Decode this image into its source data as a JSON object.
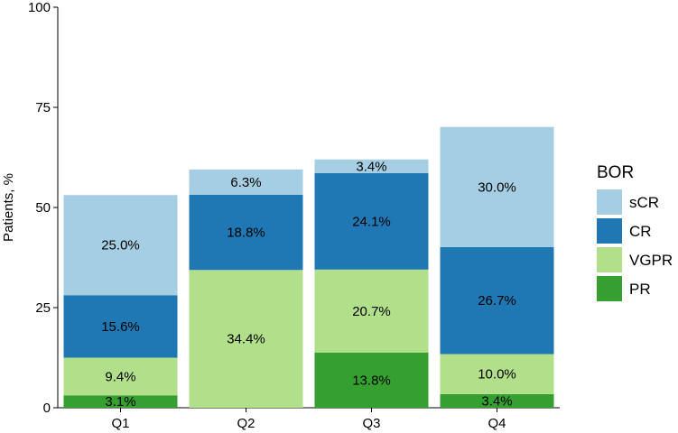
{
  "chart_data": {
    "type": "bar",
    "stacked": true,
    "categories": [
      "Q1",
      "Q2",
      "Q3",
      "Q4"
    ],
    "ylabel": "Patients, %",
    "xlabel": "",
    "ylim": [
      0,
      100
    ],
    "yticks": [
      "0",
      "25",
      "50",
      "75",
      "100"
    ],
    "grid": false,
    "legend_title": "BOR",
    "legend_position": "right",
    "series": [
      {
        "name": "PR",
        "color": "#35a030",
        "values": [
          3.1,
          0,
          13.8,
          3.4
        ],
        "labels": [
          "3.1%",
          "",
          "13.8%",
          "3.4%"
        ]
      },
      {
        "name": "VGPR",
        "color": "#b2df8a",
        "values": [
          9.4,
          34.4,
          20.7,
          10.0
        ],
        "labels": [
          "9.4%",
          "34.4%",
          "20.7%",
          "10.0%"
        ]
      },
      {
        "name": "CR",
        "color": "#1f78b4",
        "values": [
          15.6,
          18.8,
          24.1,
          26.7
        ],
        "labels": [
          "15.6%",
          "18.8%",
          "24.1%",
          "26.7%"
        ]
      },
      {
        "name": "sCR",
        "color": "#a6cee3",
        "values": [
          25.0,
          6.3,
          3.4,
          30.0
        ],
        "labels": [
          "25.0%",
          "6.3%",
          "3.4%",
          "30.0%"
        ]
      }
    ],
    "legend_order": [
      "sCR",
      "CR",
      "VGPR",
      "PR"
    ]
  }
}
